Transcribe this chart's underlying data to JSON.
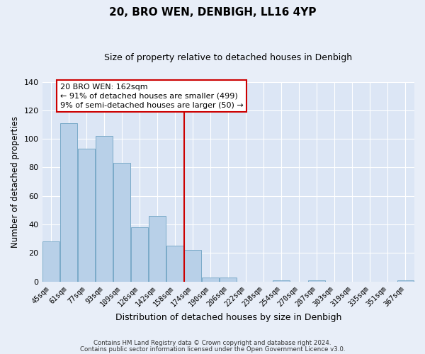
{
  "title": "20, BRO WEN, DENBIGH, LL16 4YP",
  "subtitle": "Size of property relative to detached houses in Denbigh",
  "xlabel": "Distribution of detached houses by size in Denbigh",
  "ylabel": "Number of detached properties",
  "bar_labels": [
    "45sqm",
    "61sqm",
    "77sqm",
    "93sqm",
    "109sqm",
    "126sqm",
    "142sqm",
    "158sqm",
    "174sqm",
    "190sqm",
    "206sqm",
    "222sqm",
    "238sqm",
    "254sqm",
    "270sqm",
    "287sqm",
    "303sqm",
    "319sqm",
    "335sqm",
    "351sqm",
    "367sqm"
  ],
  "bar_values": [
    28,
    111,
    93,
    102,
    83,
    38,
    46,
    25,
    22,
    3,
    3,
    0,
    0,
    1,
    0,
    1,
    0,
    0,
    0,
    0,
    1
  ],
  "bar_color": "#b8d0e8",
  "bar_edge_color": "#7aaac8",
  "vline_x": 7.5,
  "vline_color": "#cc0000",
  "annotation_title": "20 BRO WEN: 162sqm",
  "annotation_line1": "← 91% of detached houses are smaller (499)",
  "annotation_line2": "9% of semi-detached houses are larger (50) →",
  "annotation_box_facecolor": "#ffffff",
  "annotation_box_edgecolor": "#cc0000",
  "ylim": [
    0,
    140
  ],
  "yticks": [
    0,
    20,
    40,
    60,
    80,
    100,
    120,
    140
  ],
  "footer_line1": "Contains HM Land Registry data © Crown copyright and database right 2024.",
  "footer_line2": "Contains public sector information licensed under the Open Government Licence v3.0.",
  "fig_facecolor": "#e8eef8",
  "plot_facecolor": "#dce6f5",
  "grid_color": "#ffffff",
  "title_fontsize": 11,
  "subtitle_fontsize": 9
}
